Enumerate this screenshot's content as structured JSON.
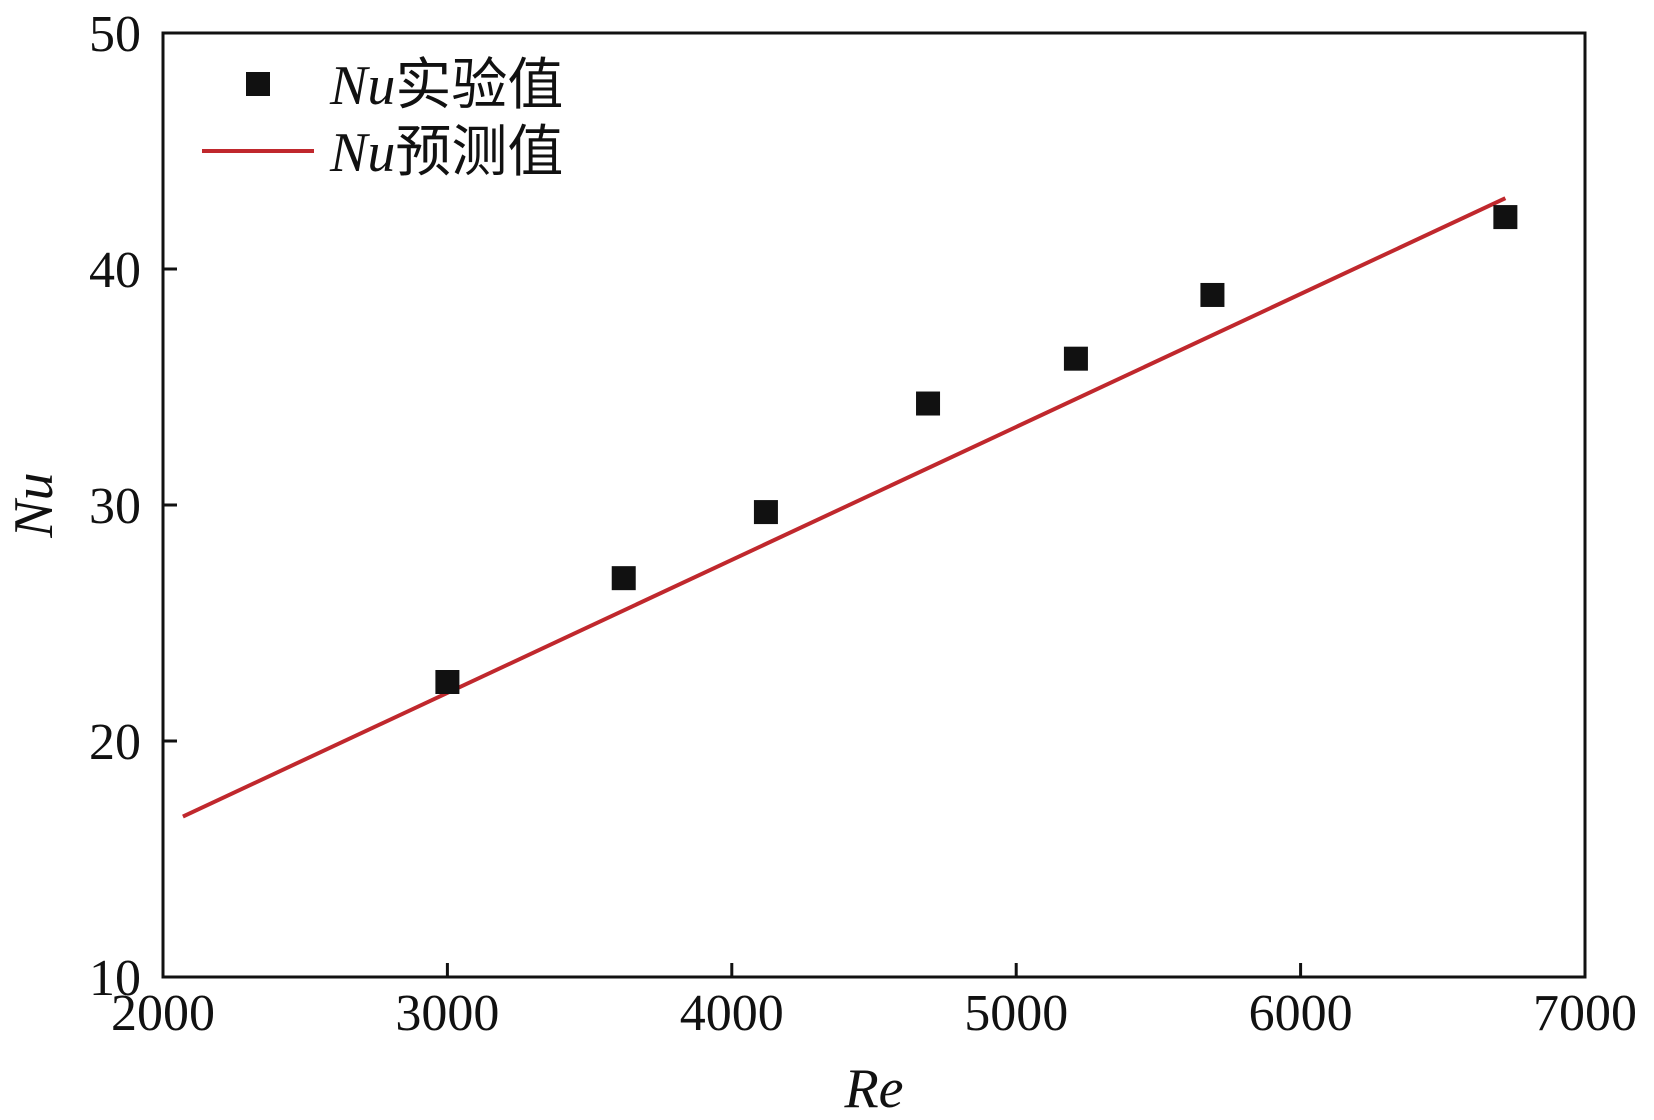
{
  "chart_data": {
    "type": "scatter",
    "xlabel": "Re",
    "ylabel": "Nu",
    "xlim": [
      2000,
      7000
    ],
    "ylim": [
      10,
      50
    ],
    "xticks": [
      2000,
      3000,
      4000,
      5000,
      6000,
      7000
    ],
    "yticks": [
      10,
      20,
      30,
      40,
      50
    ],
    "grid": false,
    "legend_position": "top-left",
    "series": [
      {
        "name": "Nu实验值",
        "name_italic": "Nu",
        "name_rest": "实验值",
        "kind": "scatter",
        "marker": "square",
        "color": "#111111",
        "x": [
          3000,
          3620,
          4120,
          4690,
          5210,
          5690,
          6720
        ],
        "y": [
          22.5,
          26.9,
          29.7,
          34.3,
          36.2,
          38.9,
          42.2
        ]
      },
      {
        "name": "Nu预测值",
        "name_italic": "Nu",
        "name_rest": "预测值",
        "kind": "line",
        "color": "#c0282d",
        "x": [
          2070,
          6720
        ],
        "y": [
          16.8,
          43.0
        ]
      }
    ]
  }
}
